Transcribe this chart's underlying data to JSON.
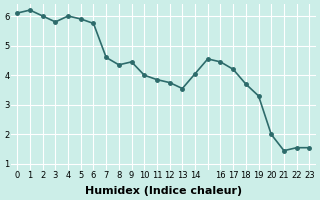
{
  "x": [
    0,
    1,
    2,
    3,
    4,
    5,
    6,
    7,
    8,
    9,
    10,
    11,
    12,
    13,
    14,
    15,
    16,
    17,
    18,
    19,
    20,
    21,
    22,
    23
  ],
  "y": [
    6.1,
    6.2,
    6.0,
    5.8,
    6.0,
    5.9,
    5.75,
    4.6,
    4.35,
    4.45,
    4.0,
    3.85,
    3.75,
    3.55,
    4.05,
    4.55,
    4.45,
    4.2,
    3.7,
    3.3,
    2.0,
    1.45,
    1.55,
    1.55
  ],
  "line_color": "#2d6b6b",
  "marker": "o",
  "markersize": 2.5,
  "linewidth": 1.2,
  "background_color": "#cceee8",
  "grid_color": "#ffffff",
  "xlabel": "Humidex (Indice chaleur)",
  "xlabel_fontsize": 8,
  "xticks": [
    0,
    1,
    2,
    3,
    4,
    5,
    6,
    7,
    8,
    9,
    10,
    11,
    12,
    13,
    14,
    15,
    16,
    17,
    18,
    19,
    20,
    21,
    22,
    23
  ],
  "xtick_labels": [
    "0",
    "1",
    "2",
    "3",
    "4",
    "5",
    "6",
    "7",
    "8",
    "9",
    "10",
    "11",
    "12",
    "13",
    "14",
    "",
    "16",
    "17",
    "18",
    "19",
    "20",
    "21",
    "22",
    "23"
  ],
  "yticks": [
    1,
    2,
    3,
    4,
    5,
    6
  ],
  "ylim": [
    0.8,
    6.4
  ],
  "xlim": [
    -0.5,
    23.5
  ],
  "tick_fontsize": 6
}
